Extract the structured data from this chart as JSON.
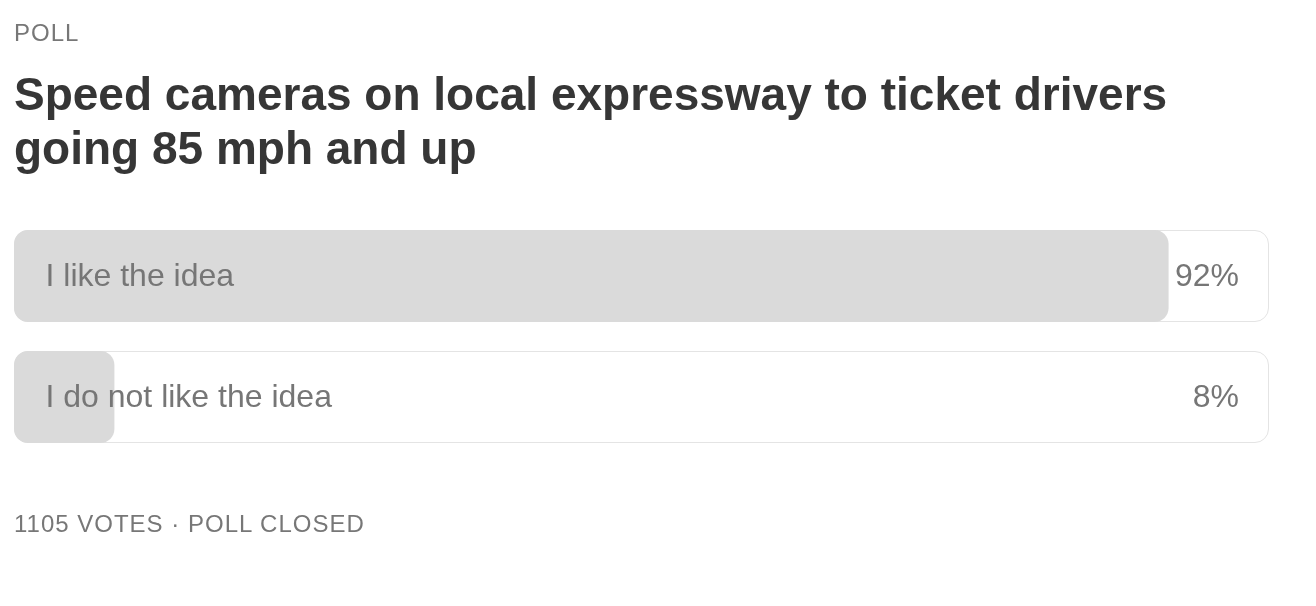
{
  "chart_data": {
    "type": "bar",
    "orientation": "horizontal",
    "subtitle": "POLL",
    "title": "Speed cameras on local expressway to ticket drivers going 85 mph and up",
    "categories": [
      "I like the idea",
      "I do not like the idea"
    ],
    "values": [
      92,
      8
    ],
    "value_labels": [
      "92%",
      "8%"
    ],
    "color": "#dadada",
    "xlim": [
      0,
      100
    ],
    "tick_labels": "y",
    "annotations": [
      "1105 VOTES · POLL CLOSED"
    ]
  }
}
